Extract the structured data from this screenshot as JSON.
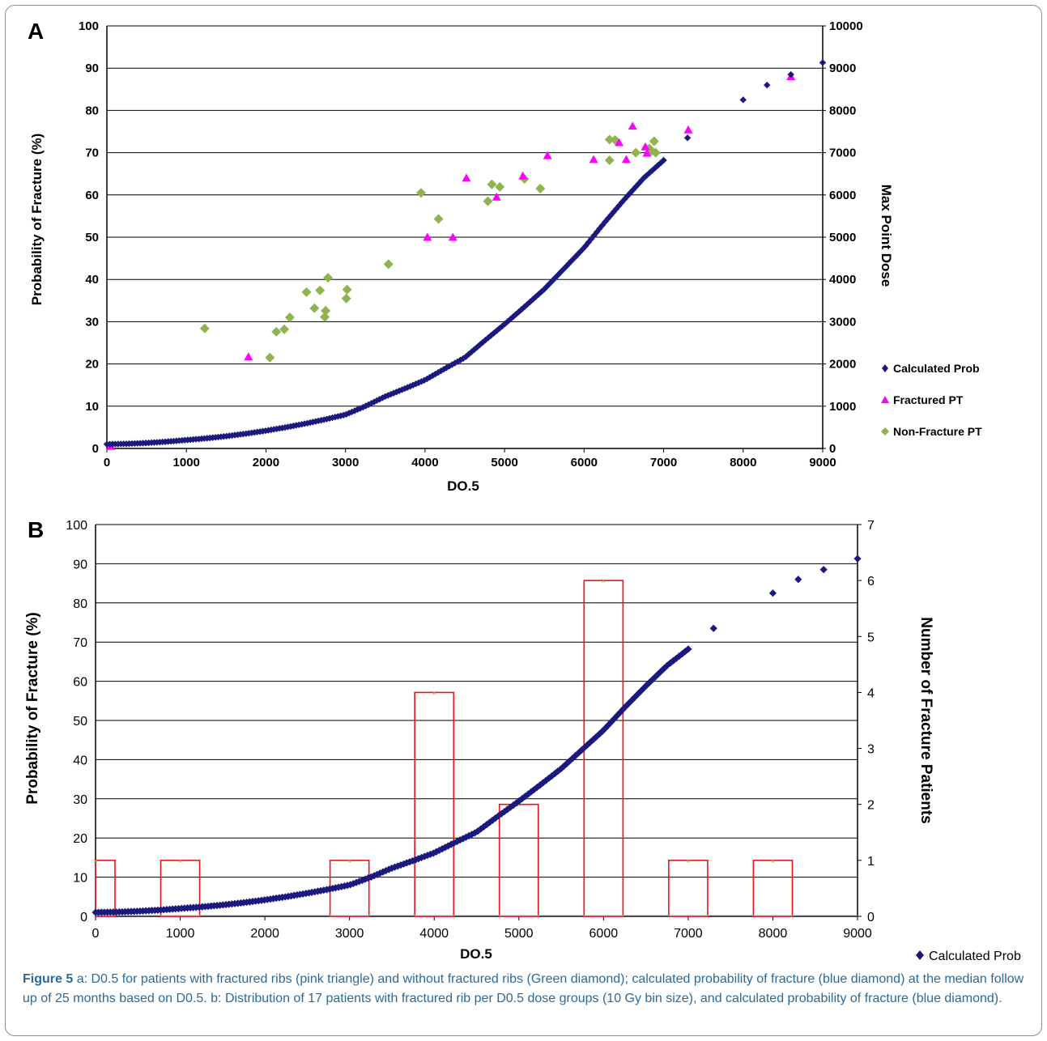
{
  "panels": [
    {
      "letter": "A",
      "xlabel": "DO.5",
      "ylabel": "Probability of Fracture (%)",
      "y2label": "Max Point Dose",
      "legend": [
        "Calculated Prob",
        "Fractured PT",
        "Non-Fracture PT"
      ]
    },
    {
      "letter": "B",
      "xlabel": "DO.5",
      "ylabel": "Probability of Fracture (%)",
      "y2label": "Number of Fracture Patients",
      "legend": [
        "Calculated Prob"
      ]
    }
  ],
  "caption": {
    "label": "Figure 5",
    "text": "a: D0.5 for patients with fractured ribs (pink triangle) and without fractured ribs (Green diamond); calculated probability of fracture (blue diamond) at the median follow up of 25 months based on D0.5. b: Distribution of 17 patients with fractured rib per D0.5 dose groups (10 Gy bin size), and calculated probability of fracture (blue diamond)."
  },
  "colors": {
    "calculated": "#1a1a7e",
    "fractured": "#ff00ff",
    "nonfracture": "#8fb34f",
    "bars": "#e8151b",
    "caption": "#2a6a9a"
  },
  "chart_data": [
    {
      "type": "scatter",
      "title": "A",
      "xlabel": "DO.5",
      "ylabel": "Probability of Fracture (%)",
      "y2label": "Max Point Dose",
      "xlim": [
        0,
        9000
      ],
      "ylim": [
        0,
        100
      ],
      "y2lim": [
        0,
        10000
      ],
      "xticks": [
        0,
        1000,
        2000,
        3000,
        4000,
        5000,
        6000,
        7000,
        8000,
        9000
      ],
      "yticks": [
        0,
        10,
        20,
        30,
        40,
        50,
        60,
        70,
        80,
        90,
        100
      ],
      "y2ticks": [
        0,
        1000,
        2000,
        3000,
        4000,
        5000,
        6000,
        7000,
        8000,
        9000,
        10000
      ],
      "grid": true,
      "legend_position": "right",
      "series": [
        {
          "name": "Calculated Prob",
          "axis": "left",
          "marker": "diamond",
          "curve": {
            "x_start": 0,
            "x_end": 7000,
            "step": 35
          },
          "x": [
            0,
            250,
            500,
            750,
            1000,
            1250,
            1500,
            1750,
            2000,
            2250,
            2500,
            2750,
            3000,
            3250,
            3500,
            3750,
            4000,
            4250,
            4500,
            4750,
            5000,
            5250,
            5500,
            5750,
            6000,
            6250,
            6500,
            6750,
            7000,
            7300,
            8000,
            8300,
            8600,
            9000
          ],
          "y": [
            1.0,
            1.1,
            1.3,
            1.6,
            2.0,
            2.4,
            2.9,
            3.5,
            4.2,
            5.0,
            5.9,
            6.9,
            8.0,
            10.0,
            12.3,
            14.2,
            16.2,
            18.9,
            21.5,
            25.5,
            29.4,
            33.5,
            37.7,
            42.6,
            47.5,
            53.3,
            58.8,
            64.0,
            68.2,
            73.5,
            82.5,
            86.0,
            88.5,
            91.3
          ]
        },
        {
          "name": "Fractured PT",
          "axis": "right",
          "marker": "triangle",
          "x": [
            50,
            1780,
            4030,
            4350,
            4520,
            4900,
            5230,
            5540,
            6120,
            6440,
            6530,
            6610,
            6770,
            6790,
            7310,
            8600
          ],
          "y": [
            50,
            2170,
            5000,
            5000,
            6400,
            5950,
            6450,
            6930,
            6840,
            7240,
            6840,
            7630,
            7140,
            6990,
            7540,
            8800
          ]
        },
        {
          "name": "Non-Fracture PT",
          "axis": "right",
          "marker": "diamond",
          "x": [
            1230,
            2050,
            2130,
            2230,
            2300,
            2510,
            2610,
            2680,
            2740,
            2750,
            2780,
            3010,
            3020,
            3540,
            3950,
            4170,
            4790,
            4840,
            4940,
            5250,
            5450,
            6320,
            6320,
            6390,
            6650,
            6820,
            6850,
            6880,
            6900
          ],
          "y": [
            2840,
            2150,
            2760,
            2820,
            3100,
            3700,
            3320,
            3740,
            3110,
            3260,
            4040,
            3550,
            3760,
            4360,
            6050,
            5430,
            5850,
            6250,
            6190,
            6380,
            6150,
            6820,
            7310,
            7300,
            7000,
            7100,
            7040,
            7270,
            7000
          ]
        }
      ]
    },
    {
      "type": "bar",
      "title": "B",
      "xlabel": "DO.5",
      "ylabel": "Probability of Fracture (%)",
      "y2label": "Number of Fracture Patients",
      "xlim": [
        0,
        9000
      ],
      "ylim": [
        0,
        100
      ],
      "y2lim": [
        0,
        7
      ],
      "xticks": [
        0,
        1000,
        2000,
        3000,
        4000,
        5000,
        6000,
        7000,
        8000,
        9000
      ],
      "yticks": [
        0,
        10,
        20,
        30,
        40,
        50,
        60,
        70,
        80,
        90,
        100
      ],
      "y2ticks": [
        0,
        1,
        2,
        3,
        4,
        5,
        6,
        7
      ],
      "grid": true,
      "legend_position": "bottom-right",
      "bars": {
        "axis": "right",
        "x": [
          0,
          1000,
          3000,
          4000,
          5000,
          6000,
          7000,
          8000
        ],
        "values": [
          1,
          1,
          1,
          4,
          2,
          6,
          1,
          1
        ]
      },
      "series": [
        {
          "name": "Calculated Prob",
          "axis": "left",
          "marker": "diamond",
          "curve": {
            "x_start": 0,
            "x_end": 7000,
            "step": 35
          },
          "x": [
            0,
            250,
            500,
            750,
            1000,
            1250,
            1500,
            1750,
            2000,
            2250,
            2500,
            2750,
            3000,
            3250,
            3500,
            3750,
            4000,
            4250,
            4500,
            4750,
            5000,
            5250,
            5500,
            5750,
            6000,
            6250,
            6500,
            6750,
            7000,
            7300,
            8000,
            8300,
            8600,
            9000
          ],
          "y": [
            1.0,
            1.1,
            1.3,
            1.6,
            2.0,
            2.4,
            2.9,
            3.5,
            4.2,
            5.0,
            5.9,
            6.9,
            8.0,
            10.0,
            12.3,
            14.2,
            16.2,
            18.9,
            21.5,
            25.5,
            29.4,
            33.5,
            37.7,
            42.6,
            47.5,
            53.3,
            58.8,
            64.0,
            68.2,
            73.5,
            82.5,
            86.0,
            88.5,
            91.3
          ]
        }
      ]
    }
  ]
}
